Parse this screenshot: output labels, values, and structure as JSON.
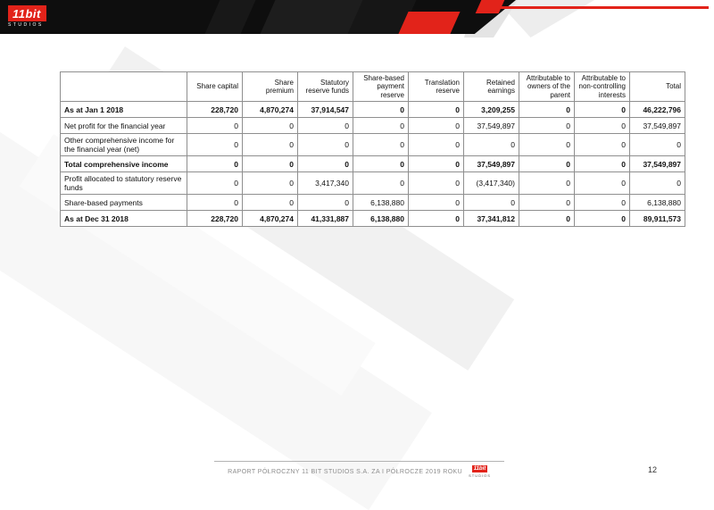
{
  "logo": {
    "name": "11bit",
    "studios": "studios"
  },
  "colors": {
    "accent_red": "#e2231a",
    "banner_black": "#0e0e0e"
  },
  "table": {
    "columns": [
      "",
      "Share capital",
      "Share premium",
      "Statutory reserve funds",
      "Share-based payment reserve",
      "Translation reserve",
      "Retained earnings",
      "Attributable to owners of the parent",
      "Attributable to non-controlling interests",
      "Total"
    ],
    "rows": [
      {
        "label": "As at Jan 1 2018",
        "bold": true,
        "values": [
          "228,720",
          "4,870,274",
          "37,914,547",
          "0",
          "0",
          "3,209,255",
          "0",
          "0",
          "46,222,796"
        ]
      },
      {
        "label": "Net profit for the financial year",
        "bold": false,
        "values": [
          "0",
          "0",
          "0",
          "0",
          "0",
          "37,549,897",
          "0",
          "0",
          "37,549,897"
        ]
      },
      {
        "label": "Other comprehensive income for the financial year (net)",
        "bold": false,
        "values": [
          "0",
          "0",
          "0",
          "0",
          "0",
          "0",
          "0",
          "0",
          "0"
        ]
      },
      {
        "label": "Total comprehensive income",
        "bold": true,
        "values": [
          "0",
          "0",
          "0",
          "0",
          "0",
          "37,549,897",
          "0",
          "0",
          "37,549,897"
        ]
      },
      {
        "label": "Profit allocated to statutory reserve funds",
        "bold": false,
        "values": [
          "0",
          "0",
          "3,417,340",
          "0",
          "0",
          "(3,417,340)",
          "0",
          "0",
          "0"
        ]
      },
      {
        "label": "Share-based payments",
        "bold": false,
        "values": [
          "0",
          "0",
          "0",
          "6,138,880",
          "0",
          "0",
          "0",
          "0",
          "6,138,880"
        ]
      },
      {
        "label": "As at Dec 31 2018",
        "bold": true,
        "values": [
          "228,720",
          "4,870,274",
          "41,331,887",
          "6,138,880",
          "0",
          "37,341,812",
          "0",
          "0",
          "89,911,573"
        ]
      }
    ]
  },
  "footer": {
    "report_title": "RAPORT PÓŁROCZNY 11 BIT STUDIOS S.A. ZA I PÓŁROCZE 2019 ROKU",
    "page_number": "12"
  }
}
